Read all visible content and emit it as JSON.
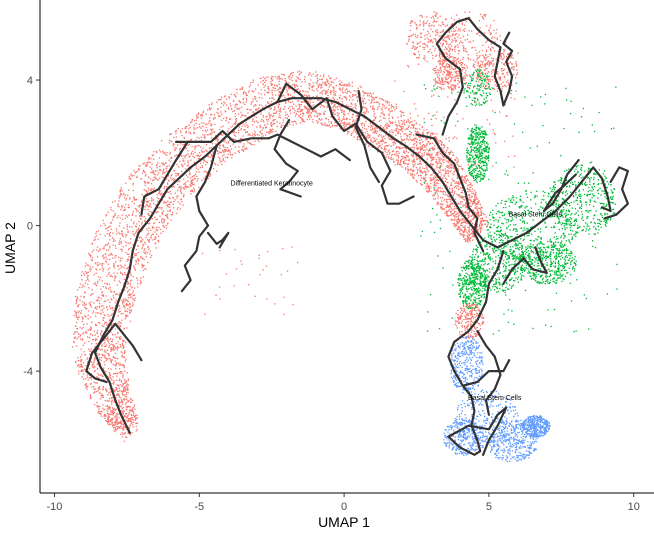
{
  "chart_data": {
    "type": "scatter",
    "title": "",
    "xlabel": "UMAP 1",
    "ylabel": "UMAP 2",
    "xlim": [
      -10.5,
      10.7
    ],
    "ylim": [
      -7.35,
      6.2
    ],
    "x_ticks": [
      -10,
      -5,
      0,
      5,
      10
    ],
    "y_ticks": [
      -4,
      0,
      4
    ],
    "x_tick_labels": [
      "-10",
      "-5",
      "0",
      "5",
      "10"
    ],
    "y_tick_labels": [
      "-4",
      "0",
      "4"
    ],
    "grid": false,
    "legend": "none",
    "series": [
      {
        "color": "#F8766D"
      },
      {
        "color": "#00BA38"
      },
      {
        "color": "#619CFF"
      }
    ],
    "cluster_labels": [
      {
        "text": "Differentiated Keratinocyte",
        "x": -2.5,
        "y": 1.1
      },
      {
        "text": "Basal Stem Cells",
        "x": 5.2,
        "y": -4.8
      },
      {
        "text": "Basal Stem Cells",
        "x": 6.6,
        "y": 0.25
      }
    ],
    "trajectory": [
      [
        [
          -7.4,
          -5.7
        ],
        [
          -7.7,
          -5.2
        ],
        [
          -7.9,
          -4.8
        ],
        [
          -8.1,
          -4.3
        ],
        [
          -8.4,
          -3.9
        ],
        [
          -8.6,
          -3.5
        ],
        [
          -8.3,
          -3.0
        ],
        [
          -8.0,
          -2.6
        ],
        [
          -7.8,
          -2.1
        ],
        [
          -7.6,
          -1.7
        ],
        [
          -7.4,
          -1.2
        ],
        [
          -7.3,
          -0.7
        ],
        [
          -7.1,
          -0.2
        ],
        [
          -6.7,
          0.2
        ],
        [
          -6.4,
          0.6
        ],
        [
          -6.1,
          1.0
        ],
        [
          -5.7,
          1.3
        ],
        [
          -5.3,
          1.6
        ],
        [
          -4.8,
          1.9
        ],
        [
          -4.4,
          2.2
        ],
        [
          -4.0,
          2.5
        ],
        [
          -3.6,
          2.8
        ],
        [
          -3.2,
          3.0
        ],
        [
          -2.8,
          3.2
        ],
        [
          -2.3,
          3.4
        ],
        [
          -1.8,
          3.5
        ],
        [
          -1.3,
          3.5
        ],
        [
          -0.8,
          3.5
        ],
        [
          -0.3,
          3.4
        ],
        [
          0.2,
          3.2
        ],
        [
          0.7,
          3.0
        ],
        [
          1.2,
          2.7
        ],
        [
          1.7,
          2.4
        ],
        [
          2.1,
          2.2
        ],
        [
          2.6,
          1.9
        ],
        [
          3.0,
          1.6
        ],
        [
          3.4,
          1.2
        ],
        [
          3.7,
          0.8
        ],
        [
          4.0,
          0.4
        ],
        [
          4.4,
          0.0
        ],
        [
          4.8,
          -0.4
        ],
        [
          5.3,
          -0.6
        ],
        [
          5.8,
          -0.4
        ],
        [
          6.3,
          -0.2
        ],
        [
          6.8,
          0.1
        ],
        [
          7.3,
          0.4
        ],
        [
          7.8,
          0.8
        ],
        [
          8.2,
          1.2
        ],
        [
          8.6,
          1.6
        ],
        [
          8.9,
          1.3
        ],
        [
          9.1,
          0.8
        ],
        [
          9.2,
          0.4
        ],
        [
          8.9,
          0.5
        ]
      ],
      [
        [
          3.4,
          2.5
        ],
        [
          3.6,
          3.0
        ],
        [
          3.9,
          3.4
        ],
        [
          4.1,
          3.8
        ],
        [
          4.0,
          4.3
        ],
        [
          3.5,
          4.6
        ],
        [
          3.2,
          5.0
        ],
        [
          3.5,
          5.3
        ],
        [
          3.9,
          5.6
        ],
        [
          4.3,
          5.7
        ],
        [
          4.6,
          5.4
        ],
        [
          5.0,
          5.1
        ],
        [
          5.4,
          4.9
        ],
        [
          5.3,
          4.5
        ],
        [
          5.2,
          4.1
        ],
        [
          5.4,
          3.7
        ],
        [
          5.5,
          3.3
        ],
        [
          5.7,
          3.7
        ],
        [
          5.8,
          4.1
        ],
        [
          5.6,
          4.5
        ],
        [
          5.8,
          4.8
        ],
        [
          5.5,
          5.0
        ],
        [
          5.7,
          5.3
        ]
      ],
      [
        [
          5.5,
          -0.7
        ],
        [
          5.3,
          -1.2
        ],
        [
          5.0,
          -1.6
        ],
        [
          4.9,
          -2.1
        ],
        [
          4.6,
          -2.6
        ],
        [
          4.3,
          -2.9
        ],
        [
          3.8,
          -3.2
        ],
        [
          3.6,
          -3.6
        ],
        [
          3.8,
          -4.0
        ],
        [
          4.1,
          -4.4
        ],
        [
          4.4,
          -4.7
        ],
        [
          4.5,
          -5.1
        ],
        [
          4.4,
          -5.5
        ],
        [
          4.6,
          -5.9
        ],
        [
          4.7,
          -6.2
        ],
        [
          4.5,
          -6.3
        ],
        [
          4.0,
          -6.1
        ],
        [
          3.6,
          -5.8
        ],
        [
          4.3,
          -5.5
        ],
        [
          5.0,
          -5.6
        ],
        [
          5.3,
          -5.2
        ],
        [
          5.6,
          -5.0
        ],
        [
          5.3,
          -5.5
        ],
        [
          5.0,
          -5.9
        ],
        [
          4.8,
          -6.3
        ]
      ],
      [
        [
          -7.0,
          -3.7
        ],
        [
          -7.3,
          -3.3
        ],
        [
          -7.6,
          -3.0
        ],
        [
          -7.9,
          -2.7
        ],
        [
          -8.3,
          -3.1
        ],
        [
          -8.7,
          -3.5
        ],
        [
          -8.9,
          -4.0
        ],
        [
          -8.6,
          -4.2
        ],
        [
          -8.2,
          -4.3
        ]
      ],
      [
        [
          -5.4,
          2.3
        ],
        [
          -5.8,
          1.8
        ],
        [
          -6.1,
          1.4
        ],
        [
          -6.4,
          1.0
        ],
        [
          -6.9,
          0.8
        ],
        [
          -7.0,
          0.3
        ]
      ],
      [
        [
          -4.4,
          2.2
        ],
        [
          -4.6,
          1.6
        ],
        [
          -4.8,
          1.2
        ],
        [
          -5.1,
          0.8
        ],
        [
          -5.0,
          0.4
        ],
        [
          -4.7,
          0.0
        ],
        [
          -5.0,
          -0.3
        ],
        [
          -5.1,
          -0.7
        ],
        [
          -5.5,
          -1.1
        ],
        [
          -5.3,
          -1.5
        ],
        [
          -5.6,
          -1.8
        ]
      ],
      [
        [
          -4.7,
          -0.2
        ],
        [
          -4.4,
          -0.5
        ],
        [
          -4.2,
          -0.4
        ],
        [
          -4.0,
          -0.2
        ],
        [
          -4.3,
          -0.6
        ]
      ],
      [
        [
          -1.9,
          2.9
        ],
        [
          -2.2,
          2.5
        ],
        [
          -2.4,
          2.1
        ],
        [
          -2.0,
          1.7
        ],
        [
          -1.6,
          1.5
        ],
        [
          -1.9,
          1.2
        ],
        [
          -2.2,
          1.0
        ],
        [
          -1.5,
          0.8
        ]
      ],
      [
        [
          -5.8,
          2.3
        ],
        [
          -5.3,
          2.3
        ],
        [
          -4.6,
          2.3
        ],
        [
          -4.2,
          2.6
        ],
        [
          -3.8,
          2.3
        ],
        [
          -3.2,
          2.4
        ],
        [
          -2.6,
          2.4
        ],
        [
          -2.3,
          2.5
        ],
        [
          -1.8,
          2.3
        ],
        [
          -1.3,
          2.1
        ],
        [
          -0.8,
          1.9
        ],
        [
          -0.3,
          2.1
        ],
        [
          0.2,
          1.8
        ]
      ],
      [
        [
          -2.3,
          3.4
        ],
        [
          -2.0,
          3.9
        ],
        [
          -1.5,
          3.6
        ],
        [
          -1.1,
          3.2
        ],
        [
          -0.6,
          3.5
        ],
        [
          -0.4,
          3.0
        ],
        [
          0.0,
          2.6
        ],
        [
          0.4,
          2.8
        ],
        [
          0.8,
          2.3
        ],
        [
          1.3,
          2.0
        ],
        [
          1.6,
          1.5
        ],
        [
          1.3,
          1.1
        ],
        [
          1.5,
          0.6
        ],
        [
          1.9,
          0.6
        ],
        [
          2.4,
          0.8
        ]
      ],
      [
        [
          0.5,
          3.7
        ],
        [
          0.6,
          3.2
        ],
        [
          0.4,
          2.7
        ],
        [
          0.7,
          2.2
        ],
        [
          0.9,
          1.6
        ],
        [
          1.2,
          1.2
        ]
      ],
      [
        [
          2.5,
          2.5
        ],
        [
          3.1,
          2.4
        ],
        [
          3.4,
          2.0
        ],
        [
          3.8,
          1.7
        ],
        [
          4.0,
          1.3
        ],
        [
          4.2,
          0.9
        ],
        [
          4.3,
          0.5
        ],
        [
          4.6,
          0.2
        ],
        [
          4.5,
          -0.2
        ],
        [
          4.8,
          -0.7
        ]
      ],
      [
        [
          8.1,
          1.8
        ],
        [
          7.7,
          1.4
        ],
        [
          7.5,
          1.0
        ],
        [
          7.2,
          0.6
        ],
        [
          6.9,
          0.4
        ],
        [
          7.3,
          0.9
        ],
        [
          7.6,
          1.1
        ],
        [
          8.0,
          1.4
        ]
      ],
      [
        [
          6.6,
          -0.6
        ],
        [
          6.8,
          -1.0
        ],
        [
          7.0,
          -1.3
        ],
        [
          6.5,
          -1.2
        ],
        [
          6.2,
          -0.9
        ],
        [
          5.8,
          -1.2
        ],
        [
          5.5,
          -1.6
        ]
      ],
      [
        [
          9.2,
          1.2
        ],
        [
          9.5,
          1.6
        ],
        [
          9.8,
          1.5
        ],
        [
          9.6,
          1.0
        ],
        [
          9.8,
          0.6
        ],
        [
          9.4,
          0.3
        ],
        [
          9.0,
          0.2
        ]
      ],
      [
        [
          4.6,
          -2.9
        ],
        [
          4.9,
          -3.3
        ],
        [
          5.2,
          -3.6
        ],
        [
          5.4,
          -4.1
        ],
        [
          5.2,
          -4.5
        ],
        [
          4.9,
          -4.8
        ],
        [
          5.0,
          -5.2
        ]
      ],
      [
        [
          4.1,
          -4.4
        ],
        [
          4.6,
          -4.3
        ],
        [
          5.0,
          -4.0
        ],
        [
          5.5,
          -4.0
        ],
        [
          5.7,
          -3.7
        ]
      ]
    ]
  }
}
